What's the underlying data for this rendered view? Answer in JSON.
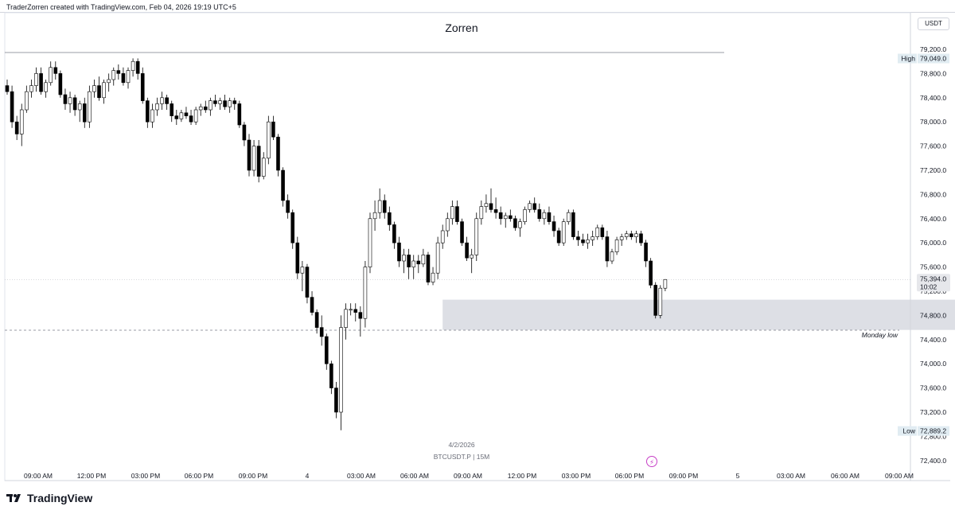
{
  "header": {
    "credit": "TraderZorren created with TradingView.com, Feb 04, 2026 19:19 UTC+5"
  },
  "chart_title": "Zorren",
  "currency": "USDT",
  "symbol_info": "BTCUSDT.P | 15M",
  "date_caption": "4/2/2026",
  "brand": {
    "name": "TradingView"
  },
  "colors": {
    "up": "#ffffff",
    "down": "#000000",
    "wick": "#000000",
    "zone": "#d1d4dc",
    "flash": "#c73fc6"
  },
  "icons": {
    "flash": "lightning-icon",
    "brand": "tradingview-logo-icon"
  },
  "chart_data": {
    "type": "candlestick",
    "title": "Zorren",
    "ylim": [
      72200,
      79500
    ],
    "y_ticks": [
      "79,200.0",
      "78,800.0",
      "78,400.0",
      "78,000.0",
      "77,600.0",
      "77,200.0",
      "76,800.0",
      "76,400.0",
      "76,000.0",
      "75,600.0",
      "75,200.0",
      "74,800.0",
      "74,400.0",
      "74,000.0",
      "73,600.0",
      "73,200.0",
      "72,800.0",
      "72,400.0"
    ],
    "x_ticks": [
      "09:00 AM",
      "12:00 PM",
      "03:00 PM",
      "06:00 PM",
      "09:00 PM",
      "4",
      "03:00 AM",
      "06:00 AM",
      "09:00 AM",
      "12:00 PM",
      "03:00 PM",
      "06:00 PM",
      "09:00 PM",
      "5",
      "03:00 AM",
      "06:00 AM",
      "09:00 AM"
    ],
    "high": {
      "label": "High",
      "value": "79,049.0",
      "price": 79049.0
    },
    "low": {
      "label": "Low",
      "value": "72,889.2",
      "price": 72889.2
    },
    "last_price": {
      "value": "75,394.0",
      "countdown": "10:02",
      "price": 75394.0
    },
    "monday_low": {
      "label": "Monday low",
      "price": 74555
    },
    "demand_zone": {
      "from_price": 74560,
      "to_price": 75060,
      "start_index": 90,
      "end_index": 196
    },
    "candles": [
      [
        78600,
        78700,
        78450,
        78500
      ],
      [
        78500,
        78600,
        77900,
        78000
      ],
      [
        78000,
        78100,
        77700,
        77800
      ],
      [
        77800,
        78300,
        77600,
        78200
      ],
      [
        78200,
        78600,
        78150,
        78500
      ],
      [
        78500,
        78700,
        78400,
        78600
      ],
      [
        78600,
        78900,
        78500,
        78800
      ],
      [
        78800,
        78900,
        78450,
        78500
      ],
      [
        78500,
        78700,
        78400,
        78650
      ],
      [
        78650,
        79000,
        78600,
        78900
      ],
      [
        78900,
        79000,
        78700,
        78800
      ],
      [
        78800,
        78850,
        78400,
        78450
      ],
      [
        78450,
        78550,
        78200,
        78300
      ],
      [
        78300,
        78500,
        78150,
        78400
      ],
      [
        78400,
        78450,
        78100,
        78200
      ],
      [
        78200,
        78350,
        78000,
        78300
      ],
      [
        78300,
        78400,
        77900,
        78000
      ],
      [
        78000,
        78600,
        77900,
        78500
      ],
      [
        78500,
        78700,
        78400,
        78600
      ],
      [
        78600,
        78750,
        78350,
        78400
      ],
      [
        78400,
        78700,
        78300,
        78650
      ],
      [
        78650,
        78800,
        78500,
        78700
      ],
      [
        78700,
        78900,
        78600,
        78850
      ],
      [
        78850,
        78950,
        78700,
        78800
      ],
      [
        78800,
        78900,
        78600,
        78650
      ],
      [
        78650,
        78900,
        78550,
        78850
      ],
      [
        78850,
        79050,
        78750,
        79000
      ],
      [
        79000,
        79050,
        78700,
        78800
      ],
      [
        78800,
        78900,
        78300,
        78350
      ],
      [
        78350,
        78400,
        77900,
        78000
      ],
      [
        78000,
        78300,
        77900,
        78200
      ],
      [
        78200,
        78400,
        78100,
        78300
      ],
      [
        78300,
        78500,
        78200,
        78400
      ],
      [
        78400,
        78450,
        78200,
        78300
      ],
      [
        78300,
        78350,
        78000,
        78100
      ],
      [
        78100,
        78200,
        77950,
        78050
      ],
      [
        78050,
        78200,
        78000,
        78150
      ],
      [
        78150,
        78250,
        78050,
        78100
      ],
      [
        78100,
        78200,
        77950,
        78000
      ],
      [
        78000,
        78250,
        77950,
        78200
      ],
      [
        78200,
        78300,
        78100,
        78250
      ],
      [
        78250,
        78350,
        78150,
        78200
      ],
      [
        78200,
        78400,
        78100,
        78350
      ],
      [
        78350,
        78450,
        78250,
        78300
      ],
      [
        78300,
        78400,
        78200,
        78350
      ],
      [
        78350,
        78450,
        78200,
        78250
      ],
      [
        78250,
        78400,
        78150,
        78350
      ],
      [
        78350,
        78400,
        78200,
        78300
      ],
      [
        78300,
        78350,
        77900,
        77950
      ],
      [
        77950,
        78000,
        77600,
        77700
      ],
      [
        77700,
        77800,
        77100,
        77200
      ],
      [
        77200,
        77700,
        77100,
        77600
      ],
      [
        77600,
        77700,
        77000,
        77100
      ],
      [
        77100,
        77500,
        77050,
        77400
      ],
      [
        77400,
        78100,
        77300,
        78000
      ],
      [
        78000,
        78100,
        77700,
        77750
      ],
      [
        77750,
        77800,
        77100,
        77200
      ],
      [
        77200,
        77250,
        76600,
        76700
      ],
      [
        76700,
        76800,
        76400,
        76500
      ],
      [
        76500,
        76550,
        75900,
        76000
      ],
      [
        76000,
        76100,
        75400,
        75500
      ],
      [
        75500,
        75700,
        75200,
        75600
      ],
      [
        75600,
        75650,
        75000,
        75100
      ],
      [
        75100,
        75200,
        74800,
        74850
      ],
      [
        74850,
        74900,
        74500,
        74600
      ],
      [
        74600,
        74800,
        74300,
        74450
      ],
      [
        74450,
        74500,
        73900,
        74000
      ],
      [
        74000,
        74050,
        73500,
        73600
      ],
      [
        73600,
        73700,
        73100,
        73200
      ],
      [
        73200,
        74800,
        72900,
        74600
      ],
      [
        74600,
        75000,
        74400,
        74900
      ],
      [
        74900,
        75000,
        74800,
        74900
      ],
      [
        74900,
        75000,
        74700,
        74850
      ],
      [
        74850,
        74950,
        74450,
        74750
      ],
      [
        74750,
        75700,
        74600,
        75600
      ],
      [
        75600,
        76500,
        75500,
        76400
      ],
      [
        76400,
        76700,
        76200,
        76500
      ],
      [
        76500,
        76900,
        76400,
        76700
      ],
      [
        76700,
        76800,
        76400,
        76500
      ],
      [
        76500,
        76600,
        76200,
        76300
      ],
      [
        76300,
        76350,
        75900,
        76000
      ],
      [
        76000,
        76100,
        75600,
        75700
      ],
      [
        75700,
        75900,
        75500,
        75800
      ],
      [
        75800,
        75900,
        75400,
        75600
      ],
      [
        75600,
        75800,
        75400,
        75700
      ],
      [
        75700,
        75800,
        75500,
        75650
      ],
      [
        75650,
        75900,
        75600,
        75800
      ],
      [
        75800,
        75850,
        75300,
        75350
      ],
      [
        75350,
        75600,
        75300,
        75500
      ],
      [
        75500,
        76100,
        75400,
        76000
      ],
      [
        76000,
        76300,
        75900,
        76200
      ],
      [
        76200,
        76500,
        76100,
        76400
      ],
      [
        76400,
        76700,
        76300,
        76600
      ],
      [
        76600,
        76700,
        76300,
        76350
      ],
      [
        76350,
        76400,
        75950,
        76000
      ],
      [
        76000,
        76100,
        75700,
        75750
      ],
      [
        75750,
        75900,
        75500,
        75800
      ],
      [
        75800,
        76500,
        75700,
        76400
      ],
      [
        76400,
        76700,
        76300,
        76600
      ],
      [
        76600,
        76800,
        76500,
        76650
      ],
      [
        76650,
        76900,
        76500,
        76550
      ],
      [
        76550,
        76750,
        76400,
        76500
      ],
      [
        76500,
        76600,
        76300,
        76400
      ],
      [
        76400,
        76500,
        76250,
        76450
      ],
      [
        76450,
        76550,
        76350,
        76400
      ],
      [
        76400,
        76450,
        76200,
        76250
      ],
      [
        76250,
        76400,
        76100,
        76350
      ],
      [
        76350,
        76600,
        76300,
        76550
      ],
      [
        76550,
        76700,
        76500,
        76650
      ],
      [
        76650,
        76750,
        76500,
        76550
      ],
      [
        76550,
        76650,
        76350,
        76400
      ],
      [
        76400,
        76550,
        76300,
        76500
      ],
      [
        76500,
        76600,
        76300,
        76350
      ],
      [
        76350,
        76450,
        76100,
        76200
      ],
      [
        76200,
        76250,
        75950,
        76000
      ],
      [
        76000,
        76400,
        75950,
        76350
      ],
      [
        76350,
        76550,
        76300,
        76500
      ],
      [
        76500,
        76550,
        76050,
        76100
      ],
      [
        76100,
        76200,
        75950,
        76050
      ],
      [
        76050,
        76150,
        75950,
        76000
      ],
      [
        76000,
        76150,
        75900,
        76050
      ],
      [
        76050,
        76200,
        75950,
        76100
      ],
      [
        76100,
        76300,
        76050,
        76250
      ],
      [
        76250,
        76300,
        76050,
        76100
      ],
      [
        76100,
        76200,
        75600,
        75700
      ],
      [
        75700,
        75900,
        75650,
        75850
      ],
      [
        75850,
        76100,
        75800,
        76050
      ],
      [
        76050,
        76150,
        75950,
        76100
      ],
      [
        76100,
        76200,
        76050,
        76150
      ],
      [
        76150,
        76200,
        76050,
        76100
      ],
      [
        76100,
        76200,
        76000,
        76150
      ],
      [
        76150,
        76200,
        75950,
        76000
      ],
      [
        76000,
        76050,
        75600,
        75700
      ],
      [
        75700,
        75750,
        75250,
        75300
      ],
      [
        75300,
        75350,
        74750,
        74800
      ],
      [
        74800,
        75300,
        74750,
        75250
      ],
      [
        75250,
        75400,
        75200,
        75394
      ]
    ]
  }
}
